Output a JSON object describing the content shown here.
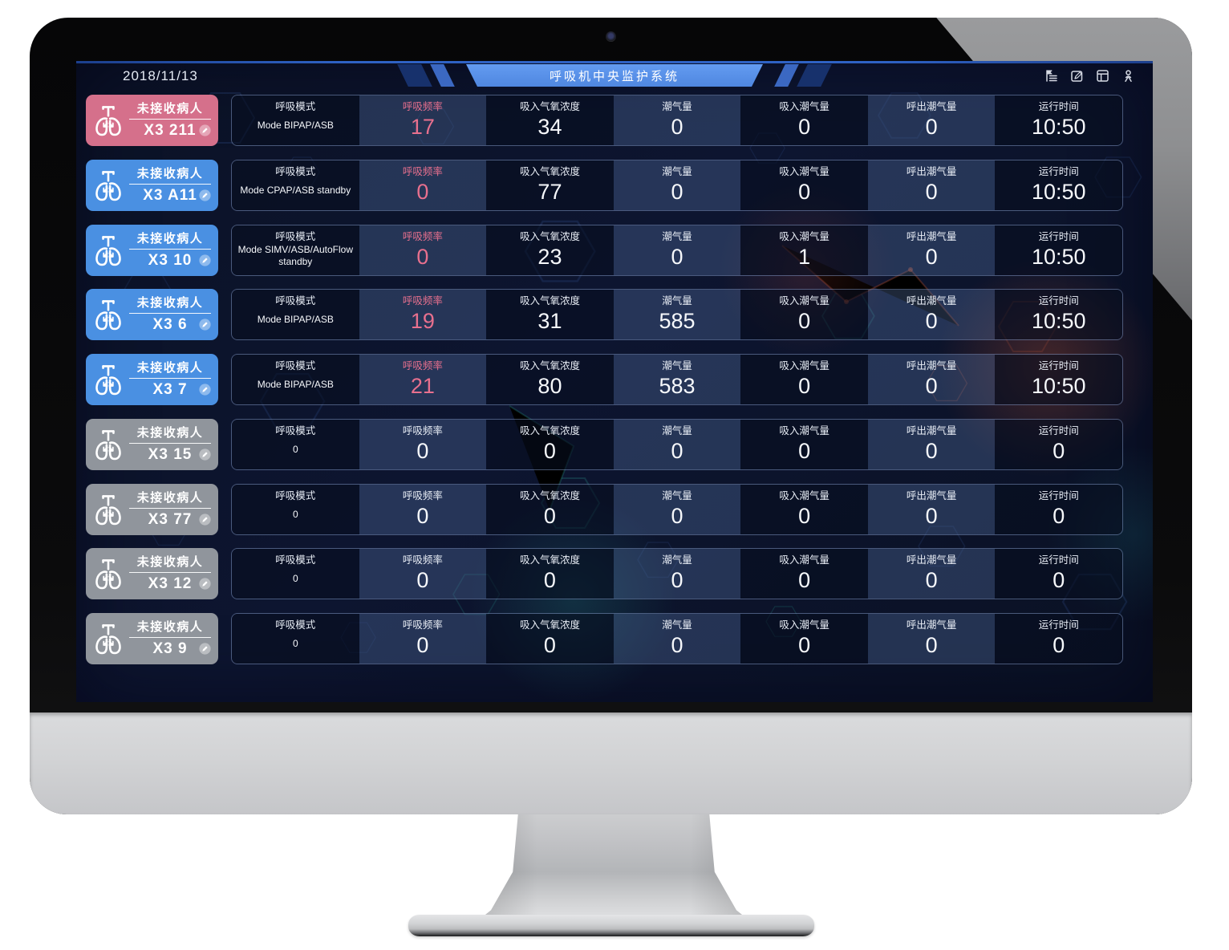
{
  "header": {
    "date": "2018/11/13",
    "title": "呼吸机中央监护系统",
    "icons": [
      "menu-tree",
      "compose",
      "layout",
      "user"
    ]
  },
  "columns": [
    "呼吸模式",
    "呼吸频率",
    "吸入气氧浓度",
    "潮气量",
    "吸入潮气量",
    "呼出潮气量",
    "运行时间"
  ],
  "rows": [
    {
      "bed": "X3 211",
      "status": "未接收病人",
      "state": "alarm",
      "values": [
        "Mode BIPAP/ASB",
        "17",
        "34",
        "0",
        "0",
        "0",
        "10:50"
      ]
    },
    {
      "bed": "X3 A11",
      "status": "未接收病人",
      "state": "online",
      "values": [
        "Mode CPAP/ASB standby",
        "0",
        "77",
        "0",
        "0",
        "0",
        "10:50"
      ]
    },
    {
      "bed": "X3 10",
      "status": "未接收病人",
      "state": "online",
      "values": [
        "Mode SIMV/ASB/AutoFlow standby",
        "0",
        "23",
        "0",
        "1",
        "0",
        "10:50"
      ]
    },
    {
      "bed": "X3 6",
      "status": "未接收病人",
      "state": "online",
      "values": [
        "Mode BIPAP/ASB",
        "19",
        "31",
        "585",
        "0",
        "0",
        "10:50"
      ]
    },
    {
      "bed": "X3 7",
      "status": "未接收病人",
      "state": "online",
      "values": [
        "Mode BIPAP/ASB",
        "21",
        "80",
        "583",
        "0",
        "0",
        "10:50"
      ]
    },
    {
      "bed": "X3 15",
      "status": "未接收病人",
      "state": "offline",
      "values": [
        "0",
        "0",
        "0",
        "0",
        "0",
        "0",
        "0"
      ]
    },
    {
      "bed": "X3 77",
      "status": "未接收病人",
      "state": "offline",
      "values": [
        "0",
        "0",
        "0",
        "0",
        "0",
        "0",
        "0"
      ]
    },
    {
      "bed": "X3 12",
      "status": "未接收病人",
      "state": "offline",
      "values": [
        "0",
        "0",
        "0",
        "0",
        "0",
        "0",
        "0"
      ]
    },
    {
      "bed": "X3 9",
      "status": "未接收病人",
      "state": "offline",
      "values": [
        "0",
        "0",
        "0",
        "0",
        "0",
        "0",
        "0"
      ]
    }
  ],
  "colors": {
    "alarm_card": "#d5708b",
    "online_card": "#4a90e2",
    "offline_card": "#90959c",
    "rate_accent": "#e8708e",
    "banner_blue": "#5591e8",
    "screen_bg": "#0c1428"
  }
}
